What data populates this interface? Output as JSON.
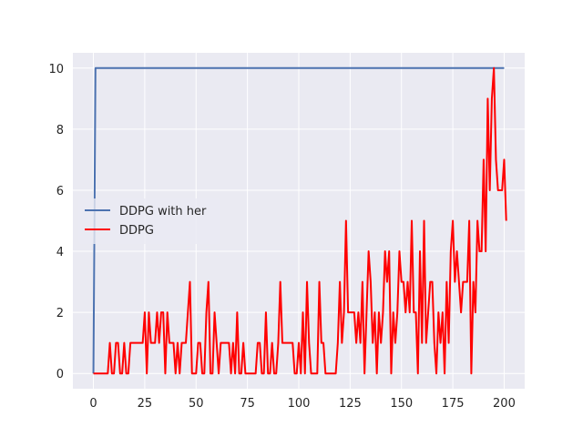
{
  "chart_data": {
    "type": "line",
    "title": "",
    "xlabel": "",
    "ylabel": "",
    "xlim": [
      -10,
      210
    ],
    "ylim": [
      -0.5,
      10.5
    ],
    "xticks": [
      0,
      25,
      50,
      75,
      100,
      125,
      150,
      175,
      200
    ],
    "yticks": [
      0,
      2,
      4,
      6,
      8,
      10
    ],
    "grid": true,
    "legend_position": "center-left",
    "background": "#eaeaf2",
    "series": [
      {
        "name": "DDPG with her",
        "color": "#4c72b0",
        "x": [
          0,
          1,
          2,
          200
        ],
        "y": [
          0,
          10,
          10,
          10
        ]
      },
      {
        "name": "DDPG",
        "color": "#ff0000",
        "y": [
          0,
          0,
          0,
          0,
          0,
          0,
          0,
          0,
          1,
          0,
          0,
          1,
          1,
          0,
          0,
          1,
          0,
          0,
          1,
          1,
          1,
          1,
          1,
          1,
          1,
          2,
          0,
          2,
          1,
          1,
          1,
          2,
          1,
          2,
          2,
          0,
          2,
          1,
          1,
          1,
          0,
          1,
          0,
          1,
          1,
          1,
          2,
          3,
          0,
          0,
          0,
          1,
          1,
          0,
          0,
          2,
          3,
          0,
          0,
          2,
          1,
          0,
          1,
          1,
          1,
          1,
          1,
          0,
          1,
          0,
          2,
          0,
          0,
          1,
          0,
          0,
          0,
          0,
          0,
          0,
          1,
          1,
          0,
          0,
          2,
          0,
          0,
          1,
          0,
          0,
          1,
          3,
          1,
          1,
          1,
          1,
          1,
          1,
          0,
          0,
          1,
          0,
          2,
          0,
          3,
          1,
          0,
          0,
          0,
          0,
          3,
          1,
          1,
          0,
          0,
          0,
          0,
          0,
          0,
          1,
          3,
          1,
          2,
          5,
          2,
          2,
          2,
          2,
          1,
          2,
          1,
          3,
          0,
          2,
          4,
          3,
          1,
          2,
          0,
          2,
          1,
          2,
          4,
          3,
          4,
          0,
          2,
          1,
          2,
          4,
          3,
          3,
          2,
          3,
          2,
          5,
          2,
          2,
          0,
          4,
          1,
          5,
          1,
          2,
          3,
          3,
          1,
          0,
          2,
          1,
          2,
          0,
          3,
          1,
          4,
          5,
          3,
          4,
          3,
          2,
          3,
          3,
          3,
          5,
          0,
          3,
          2,
          5,
          4,
          4,
          7,
          4,
          9,
          6,
          9,
          10,
          7,
          6,
          6,
          6,
          7,
          5
        ]
      }
    ]
  }
}
